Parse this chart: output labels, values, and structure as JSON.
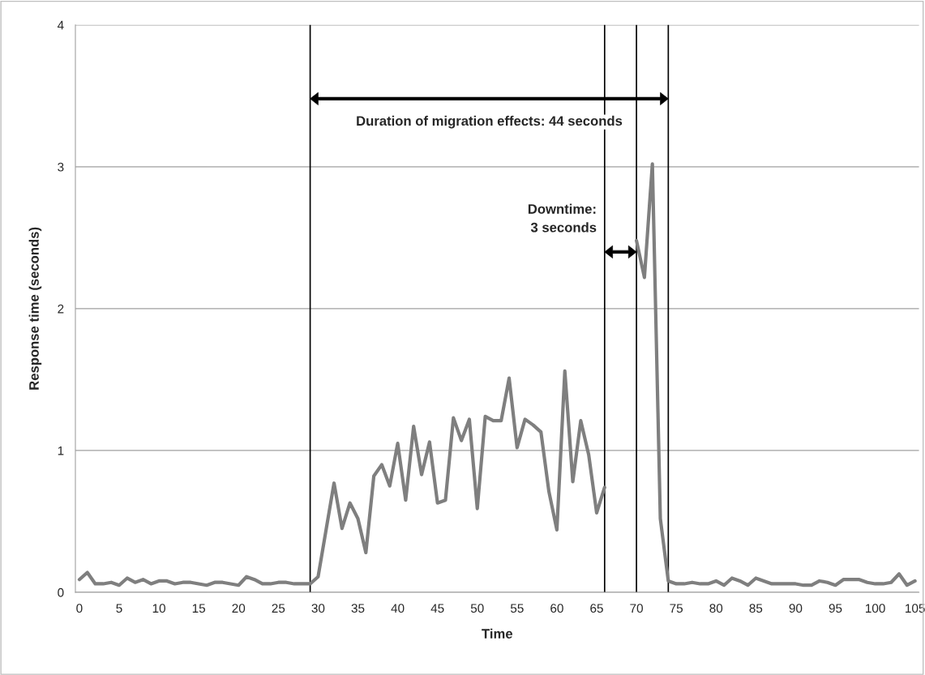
{
  "chart_data": {
    "type": "line",
    "xlabel": "Time",
    "ylabel": "Response time (seconds)",
    "x": [
      0,
      1,
      2,
      3,
      4,
      5,
      6,
      7,
      8,
      9,
      10,
      11,
      12,
      13,
      14,
      15,
      16,
      17,
      18,
      19,
      20,
      21,
      22,
      23,
      24,
      25,
      26,
      27,
      28,
      29,
      30,
      31,
      32,
      33,
      34,
      35,
      36,
      37,
      38,
      39,
      40,
      41,
      42,
      43,
      44,
      45,
      46,
      47,
      48,
      49,
      50,
      51,
      52,
      53,
      54,
      55,
      56,
      57,
      58,
      59,
      60,
      61,
      62,
      63,
      64,
      65,
      66,
      67,
      68,
      69,
      70,
      71,
      72,
      73,
      74,
      75,
      76,
      77,
      78,
      79,
      80,
      81,
      82,
      83,
      84,
      85,
      86,
      87,
      88,
      89,
      90,
      91,
      92,
      93,
      94,
      95,
      96,
      97,
      98,
      99,
      100,
      101,
      102,
      103,
      104,
      105
    ],
    "series": [
      {
        "color": "#7f7f7f",
        "values": [
          0.09,
          0.14,
          0.06,
          0.06,
          0.07,
          0.05,
          0.1,
          0.07,
          0.09,
          0.06,
          0.08,
          0.08,
          0.06,
          0.07,
          0.07,
          0.06,
          0.05,
          0.07,
          0.07,
          0.06,
          0.05,
          0.11,
          0.09,
          0.06,
          0.06,
          0.07,
          0.07,
          0.06,
          0.06,
          0.06,
          0.11,
          0.44,
          0.77,
          0.45,
          0.63,
          0.52,
          0.28,
          0.82,
          0.9,
          0.75,
          1.05,
          0.65,
          1.17,
          0.83,
          1.06,
          0.63,
          0.65,
          1.23,
          1.07,
          1.22,
          0.59,
          1.24,
          1.21,
          1.21,
          1.51,
          1.02,
          1.22,
          1.18,
          1.13,
          0.71,
          0.44,
          1.56,
          0.78,
          1.21,
          0.97,
          0.56,
          0.74,
          null,
          null,
          null,
          2.48,
          2.22,
          3.02,
          0.52,
          0.08,
          0.06,
          0.06,
          0.07,
          0.06,
          0.06,
          0.08,
          0.05,
          0.1,
          0.08,
          0.05,
          0.1,
          0.08,
          0.06,
          0.06,
          0.06,
          0.06,
          0.05,
          0.05,
          0.08,
          0.07,
          0.05,
          0.09,
          0.09,
          0.09,
          0.07,
          0.06,
          0.06,
          0.07,
          0.13,
          0.05,
          0.08
        ]
      }
    ],
    "xlim": [
      -0.5,
      105.5
    ],
    "xticks": [
      0,
      5,
      10,
      15,
      20,
      25,
      30,
      35,
      40,
      45,
      50,
      55,
      60,
      65,
      70,
      75,
      80,
      85,
      90,
      95,
      100,
      105
    ],
    "ylim": [
      0,
      4
    ],
    "yticks": [
      0,
      1,
      2,
      3,
      4
    ],
    "grid": "y",
    "legend": false,
    "marker": "none",
    "line_style": "solid",
    "ref_lines": [
      {
        "axis": "x",
        "value": 29,
        "color": "#000000"
      },
      {
        "axis": "x",
        "value": 66,
        "color": "#000000"
      },
      {
        "axis": "x",
        "value": 70,
        "color": "#000000"
      },
      {
        "axis": "x",
        "value": 74,
        "color": "#000000"
      }
    ],
    "annotations": [
      "Duration of migration effects: 44 seconds",
      "Downtime:\n3 seconds"
    ]
  }
}
